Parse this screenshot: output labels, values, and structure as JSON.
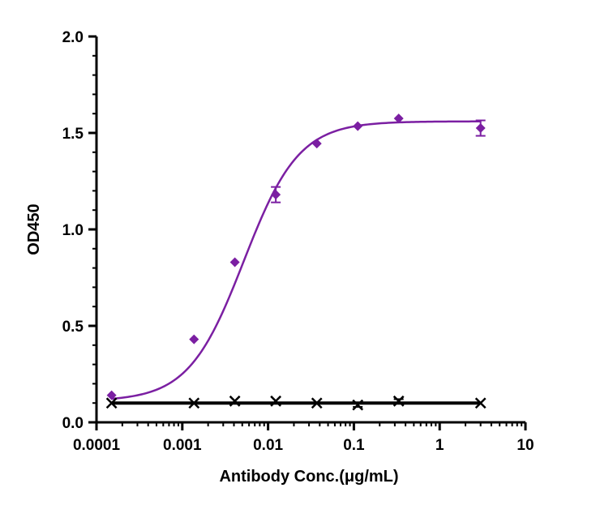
{
  "chart_data": {
    "type": "scatter",
    "xlabel": "Antibody Conc.(μg/mL)",
    "ylabel": "OD450",
    "xscale": "log",
    "xlim": [
      0.0001,
      10
    ],
    "ylim": [
      0,
      2
    ],
    "x_ticks": [
      {
        "value": 0.0001,
        "label": "0.0001"
      },
      {
        "value": 0.001,
        "label": "0.001"
      },
      {
        "value": 0.01,
        "label": "0.01"
      },
      {
        "value": 0.1,
        "label": "0.1"
      },
      {
        "value": 1,
        "label": "1"
      },
      {
        "value": 10,
        "label": "10"
      }
    ],
    "y_ticks": [
      {
        "value": 0,
        "label": "0.0"
      },
      {
        "value": 0.5,
        "label": "0.5"
      },
      {
        "value": 1,
        "label": "1.0"
      },
      {
        "value": 1.5,
        "label": "1.5"
      },
      {
        "value": 2,
        "label": "2.0"
      }
    ],
    "grid": false,
    "legend": "none",
    "series": [
      {
        "marker": "diamond",
        "color": "#7B1FA2",
        "fit": "4PL sigmoid",
        "fit_params": {
          "bottom": 0.11,
          "top": 1.56,
          "ec50": 0.0052,
          "hill": 1.35
        },
        "points": [
          {
            "x": 0.00015,
            "y": 0.14,
            "err": 0.0
          },
          {
            "x": 0.00137,
            "y": 0.43,
            "err": 0.0
          },
          {
            "x": 0.0041,
            "y": 0.83,
            "err": 0.0
          },
          {
            "x": 0.0123,
            "y": 1.18,
            "err": 0.04
          },
          {
            "x": 0.037,
            "y": 1.445,
            "err": 0.0
          },
          {
            "x": 0.111,
            "y": 1.535,
            "err": 0.0
          },
          {
            "x": 0.333,
            "y": 1.575,
            "err": 0.0
          },
          {
            "x": 3.0,
            "y": 1.525,
            "err": 0.04
          }
        ]
      },
      {
        "marker": "x-cross",
        "color": "#000000",
        "fit": "flat",
        "fit_value": 0.1,
        "points": [
          {
            "x": 0.00015,
            "y": 0.1,
            "err": 0.0
          },
          {
            "x": 0.00137,
            "y": 0.1,
            "err": 0.0
          },
          {
            "x": 0.0041,
            "y": 0.11,
            "err": 0.0
          },
          {
            "x": 0.0123,
            "y": 0.11,
            "err": 0.0
          },
          {
            "x": 0.037,
            "y": 0.1,
            "err": 0.0
          },
          {
            "x": 0.111,
            "y": 0.09,
            "err": 0.01
          },
          {
            "x": 0.333,
            "y": 0.11,
            "err": 0.01
          },
          {
            "x": 3.0,
            "y": 0.1,
            "err": 0.0
          }
        ]
      }
    ]
  }
}
